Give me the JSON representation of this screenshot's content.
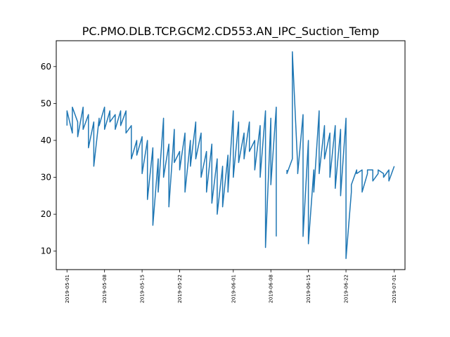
{
  "chart_data": {
    "type": "line",
    "title": "PC.PMO.DLB.TCP.GCM2.CD553.AN_IPC_Suction_Temp",
    "xlabel": "",
    "ylabel": "",
    "x_type": "date",
    "xlim": [
      "2019-04-29",
      "2019-07-03"
    ],
    "ylim": [
      5,
      67
    ],
    "x_tick_labels": [
      "2019-05-01",
      "2019-05-08",
      "2019-05-15",
      "2019-05-22",
      "2019-06-01",
      "2019-06-08",
      "2019-06-15",
      "2019-06-22",
      "2019-07-01"
    ],
    "y_ticks": [
      10,
      20,
      30,
      40,
      50,
      60
    ],
    "grid": false,
    "legend": "none",
    "series_color": "#1f77b4",
    "series": [
      {
        "x": [
          "2019-05-01",
          "2019-05-01",
          "2019-05-02",
          "2019-05-02",
          "2019-05-03",
          "2019-05-03",
          "2019-05-04",
          "2019-05-04",
          "2019-05-05",
          "2019-05-05",
          "2019-05-06",
          "2019-05-06",
          "2019-05-07",
          "2019-05-07",
          "2019-05-08",
          "2019-05-08",
          "2019-05-09",
          "2019-05-09",
          "2019-05-10",
          "2019-05-10",
          "2019-05-11",
          "2019-05-11",
          "2019-05-12",
          "2019-05-12",
          "2019-05-13",
          "2019-05-13",
          "2019-05-14",
          "2019-05-14",
          "2019-05-15",
          "2019-05-15",
          "2019-05-16",
          "2019-05-16",
          "2019-05-17",
          "2019-05-17",
          "2019-05-18",
          "2019-05-18",
          "2019-05-19",
          "2019-05-19",
          "2019-05-20",
          "2019-05-20",
          "2019-05-21",
          "2019-05-21",
          "2019-05-22",
          "2019-05-22",
          "2019-05-23",
          "2019-05-23",
          "2019-05-24",
          "2019-05-24",
          "2019-05-25",
          "2019-05-25",
          "2019-05-26",
          "2019-05-26",
          "2019-05-27",
          "2019-05-27",
          "2019-05-28",
          "2019-05-28",
          "2019-05-29",
          "2019-05-29",
          "2019-05-30",
          "2019-05-30",
          "2019-05-31",
          "2019-05-31",
          "2019-06-01",
          "2019-06-01",
          "2019-06-02",
          "2019-06-02",
          "2019-06-03",
          "2019-06-03",
          "2019-06-04",
          "2019-06-04",
          "2019-06-05",
          "2019-06-05",
          "2019-06-06",
          "2019-06-06",
          "2019-06-07",
          "2019-06-07",
          "2019-06-08",
          "2019-06-08",
          "2019-06-09",
          "2019-06-09",
          "2019-06-10",
          "2019-06-10",
          "2019-06-11",
          "2019-06-11",
          "2019-06-12",
          "2019-06-12",
          "2019-06-13",
          "2019-06-13",
          "2019-06-14",
          "2019-06-14",
          "2019-06-15",
          "2019-06-15",
          "2019-06-16",
          "2019-06-16",
          "2019-06-17",
          "2019-06-17",
          "2019-06-18",
          "2019-06-18",
          "2019-06-19",
          "2019-06-19",
          "2019-06-20",
          "2019-06-20",
          "2019-06-21",
          "2019-06-21",
          "2019-06-22",
          "2019-06-22",
          "2019-06-23",
          "2019-06-23",
          "2019-06-24",
          "2019-06-24",
          "2019-06-25",
          "2019-06-25",
          "2019-06-26",
          "2019-06-26",
          "2019-06-27",
          "2019-06-27",
          "2019-06-28",
          "2019-06-28",
          "2019-06-29",
          "2019-06-29",
          "2019-06-30",
          "2019-06-30",
          "2019-07-01"
        ],
        "y": [
          44,
          48,
          42,
          49,
          45,
          41,
          49,
          43,
          47,
          38,
          45,
          33,
          46,
          44,
          49,
          43,
          48,
          45,
          47,
          43,
          48,
          44,
          48,
          42,
          44,
          35,
          40,
          36,
          41,
          31,
          40,
          24,
          38,
          17,
          35,
          26,
          46,
          30,
          39,
          22,
          43,
          34,
          37,
          32,
          42,
          26,
          40,
          33,
          45,
          35,
          42,
          30,
          37,
          26,
          39,
          23,
          35,
          20,
          33,
          22,
          36,
          26,
          48,
          30,
          45,
          34,
          42,
          35,
          45,
          37,
          40,
          32,
          44,
          30,
          48,
          11,
          46,
          28,
          49,
          14,
          null,
          null,
          32,
          31,
          35,
          64,
          33,
          31,
          47,
          14,
          40,
          12,
          32,
          26,
          48,
          31,
          44,
          35,
          42,
          30,
          44,
          27,
          43,
          25,
          46,
          8,
          26,
          28,
          32,
          31,
          32,
          26,
          31,
          32,
          32,
          29,
          31,
          32,
          31,
          30,
          32,
          29,
          33
        ]
      }
    ]
  }
}
